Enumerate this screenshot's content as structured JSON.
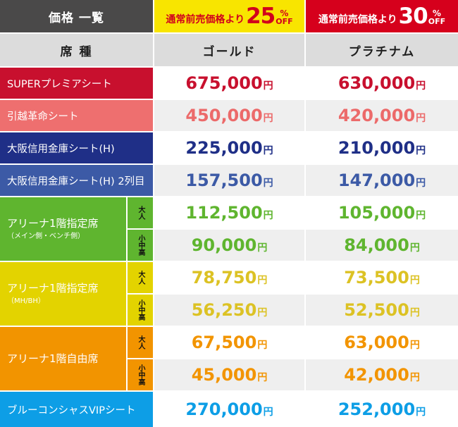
{
  "header": {
    "title": "価格 一覧",
    "gold_discount": {
      "prefix": "通常前売価格より",
      "percent": "25",
      "suffix_pct": "%",
      "suffix_off": "OFF"
    },
    "platinum_discount": {
      "prefix": "通常前売価格より",
      "percent": "30",
      "suffix_pct": "%",
      "suffix_off": "OFF"
    }
  },
  "subheader": {
    "seat": "席 種",
    "gold": "ゴールド",
    "platinum": "プラチナム"
  },
  "yen": "円",
  "rows": [
    {
      "label": "SUPERプレミアシート",
      "gold": "675,000",
      "platinum": "630,000",
      "label_color": "#c8102e",
      "price_color": "#c8102e"
    },
    {
      "label": "引越革命シート",
      "gold": "450,000",
      "platinum": "420,000",
      "label_color": "#ee6f6f",
      "price_color": "#ec6a6a"
    },
    {
      "label": "大阪信用金庫シート(H)",
      "gold": "225,000",
      "platinum": "210,000",
      "label_color": "#1f2f87",
      "price_color": "#1f2f87"
    },
    {
      "label": "大阪信用金庫シート(H) 2列目",
      "gold": "157,500",
      "platinum": "147,000",
      "label_color": "#3c5aa6",
      "price_color": "#3c5aa6"
    }
  ],
  "arena_side": {
    "label": "アリーナ1階指定席",
    "sublabel": "（メイン側・ベンチ側）",
    "color": "#5fb52f",
    "adult_tag": "大人",
    "child_tag": "小中高",
    "adult": {
      "gold": "112,500",
      "platinum": "105,000"
    },
    "child": {
      "gold": "90,000",
      "platinum": "84,000"
    }
  },
  "arena_mhbh": {
    "label": "アリーナ1階指定席",
    "sublabel": "（MH/BH）",
    "color": "#e3d300",
    "price_color": "#dcc224",
    "adult_tag": "大人",
    "child_tag": "小中高",
    "adult": {
      "gold": "78,750",
      "platinum": "73,500"
    },
    "child": {
      "gold": "56,250",
      "platinum": "52,500"
    }
  },
  "arena_free": {
    "label": "アリーナ1階自由席",
    "color": "#f29400",
    "adult_tag": "大人",
    "child_tag": "小中高",
    "adult": {
      "gold": "67,500",
      "platinum": "63,000"
    },
    "child": {
      "gold": "45,000",
      "platinum": "42,000"
    }
  },
  "blue_vip": {
    "label": "ブルーコンシャスVIPシート",
    "gold": "270,000",
    "platinum": "252,000",
    "color": "#0d9ee6"
  }
}
